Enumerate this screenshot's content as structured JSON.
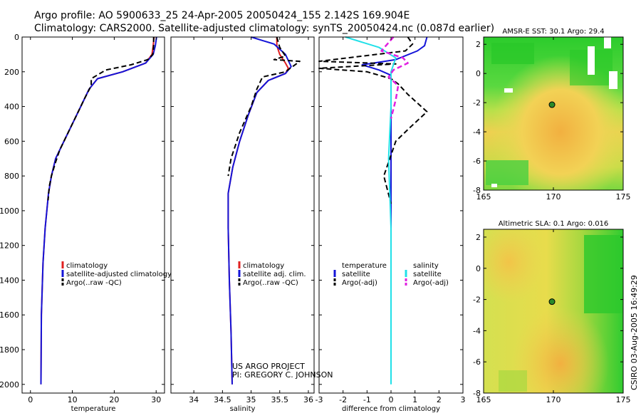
{
  "title": {
    "line1": "Argo profile: AO 5900633_25 24-Apr-2005 20050424_155 2.142S 169.904E",
    "line2": "Climatology: CARS2000. Satellite-adjusted climatology: synTS_20050424.nc (0.087d earlier)"
  },
  "colors": {
    "red": "#e02020",
    "blue": "#1414d8",
    "black": "#000000",
    "cyan": "#20e0e8",
    "magenta": "#e020e0"
  },
  "credit": {
    "line1": "US ARGO PROJECT",
    "line2": "PI: GREGORY C. JOHNSON"
  },
  "stamp": "CSIRO 03-Aug-2005 16:49:29",
  "chart_data": [
    {
      "type": "line",
      "id": "temperature",
      "xlabel": "temperature",
      "ylabel": "",
      "xlim": [
        -2,
        32
      ],
      "ylim": [
        2050,
        0
      ],
      "xticks": [
        0,
        10,
        20,
        30
      ],
      "yticks": [
        0,
        200,
        400,
        600,
        800,
        1000,
        1200,
        1400,
        1600,
        1800,
        2000
      ],
      "legend": [
        "climatology",
        "satellite-adjusted climatology",
        "Argo(..raw -QC)"
      ],
      "series": [
        {
          "name": "climatology",
          "color": "red",
          "dash": false,
          "x": [
            29.5,
            29.3,
            29.0,
            27.5,
            22.0,
            16.0,
            14.0,
            12.0,
            10.0,
            8.0,
            6.0,
            5.0,
            4.3,
            3.5,
            3.0,
            2.6,
            2.5
          ],
          "y": [
            0,
            50,
            100,
            150,
            200,
            240,
            300,
            400,
            500,
            600,
            700,
            800,
            900,
            1100,
            1300,
            1600,
            2000
          ]
        },
        {
          "name": "satellite-adjusted climatology",
          "color": "blue",
          "dash": false,
          "x": [
            30.1,
            29.8,
            29.3,
            27.5,
            22.0,
            16.0,
            14.0,
            12.0,
            10.0,
            8.0,
            6.0,
            5.0,
            4.3,
            3.5,
            3.0,
            2.6,
            2.5
          ],
          "y": [
            0,
            50,
            100,
            150,
            200,
            240,
            300,
            400,
            500,
            600,
            700,
            800,
            900,
            1100,
            1300,
            1600,
            2000
          ]
        },
        {
          "name": "Argo(..raw -QC)",
          "color": "black",
          "dash": true,
          "x": [
            29.4,
            29.4,
            29.2,
            28.0,
            24.0,
            18.0,
            14.5,
            14.5,
            13.0,
            11.0,
            9.0,
            7.0,
            6.0,
            5.0,
            4.5,
            4.2
          ],
          "y": [
            0,
            50,
            100,
            130,
            160,
            190,
            240,
            280,
            350,
            450,
            550,
            650,
            720,
            800,
            860,
            940
          ]
        }
      ]
    },
    {
      "type": "line",
      "id": "salinity",
      "xlabel": "salinity",
      "ylabel": "",
      "xlim": [
        33.6,
        36.1
      ],
      "ylim": [
        2050,
        0
      ],
      "xticks": [
        34,
        34.5,
        35,
        35.5,
        36
      ],
      "yticks": [
        0,
        200,
        400,
        600,
        800,
        1000,
        1200,
        1400,
        1600,
        1800,
        2000
      ],
      "legend": [
        "climatology",
        "satellite adj. clim.",
        "Argo(..raw -QC)"
      ],
      "series": [
        {
          "name": "climatology",
          "color": "red",
          "dash": false,
          "x": [
            35.45,
            35.45,
            35.5,
            35.6,
            35.65,
            35.6,
            35.3,
            35.1,
            34.95,
            34.8,
            34.68,
            34.6,
            34.6,
            34.62,
            34.65,
            34.67
          ],
          "y": [
            0,
            50,
            100,
            150,
            180,
            210,
            250,
            320,
            450,
            600,
            750,
            900,
            1100,
            1400,
            1700,
            2000
          ]
        },
        {
          "name": "satellite adj. clim.",
          "color": "blue",
          "dash": false,
          "x": [
            35.0,
            35.2,
            35.4,
            35.6,
            35.7,
            35.6,
            35.3,
            35.1,
            34.95,
            34.8,
            34.68,
            34.6,
            34.6,
            34.62,
            34.65,
            34.67
          ],
          "y": [
            0,
            20,
            40,
            100,
            170,
            210,
            250,
            320,
            450,
            600,
            750,
            900,
            1100,
            1400,
            1700,
            2000
          ]
        },
        {
          "name": "Argo(..raw -QC)",
          "color": "black",
          "dash": true,
          "x": [
            35.45,
            35.5,
            35.6,
            35.4,
            35.85,
            35.6,
            35.2,
            35.1,
            35.0,
            34.8,
            34.65,
            34.6
          ],
          "y": [
            0,
            60,
            110,
            130,
            140,
            200,
            230,
            300,
            400,
            550,
            700,
            800
          ]
        }
      ]
    },
    {
      "type": "line",
      "id": "difference",
      "xlabel": "difference from climatology",
      "ylabel": "",
      "xlim": [
        -3,
        3
      ],
      "ylim": [
        2050,
        0
      ],
      "xticks": [
        -3,
        -2,
        -1,
        0,
        1,
        2,
        3
      ],
      "yticks": [
        0,
        200,
        400,
        600,
        800,
        1000,
        1200,
        1400,
        1600,
        1800,
        2000
      ],
      "legend_left": [
        "temperature",
        "satellite",
        "Argo(-adj)"
      ],
      "legend_right": [
        "salinity",
        "satellite",
        "Argo(-adj)"
      ],
      "series": [
        {
          "name": "temperature satellite",
          "color": "blue",
          "dash": false,
          "x": [
            1.5,
            1.4,
            1.1,
            0.2,
            -1.2,
            -0.5,
            0.0,
            0.0,
            0.0,
            0.0,
            0.0
          ],
          "y": [
            0,
            50,
            80,
            130,
            160,
            190,
            220,
            400,
            800,
            1200,
            1900
          ]
        },
        {
          "name": "temperature Argo(-adj)",
          "color": "black",
          "dash": true,
          "x": [
            0.7,
            0.9,
            0.6,
            -3.0,
            0.2,
            -3.0,
            -1.0,
            0.0,
            0.3,
            0.7,
            1.5,
            0.8,
            0.2,
            -0.3,
            0.0
          ],
          "y": [
            0,
            40,
            80,
            140,
            155,
            180,
            200,
            240,
            270,
            330,
            430,
            520,
            600,
            800,
            960
          ]
        },
        {
          "name": "salinity satellite",
          "color": "cyan",
          "dash": false,
          "x": [
            -1.9,
            -0.5,
            0.2,
            0.0,
            0.0,
            -0.1,
            0.0,
            0.0,
            0.0
          ],
          "y": [
            0,
            60,
            120,
            200,
            400,
            700,
            1100,
            1500,
            2000
          ]
        },
        {
          "name": "salinity Argo(-adj)",
          "color": "magenta",
          "dash": true,
          "x": [
            0.1,
            -0.4,
            0.5,
            0.7,
            0.1,
            -0.1,
            0.3,
            0.2,
            0.0
          ],
          "y": [
            0,
            80,
            120,
            150,
            190,
            230,
            280,
            360,
            470
          ]
        }
      ]
    },
    {
      "type": "heatmap",
      "id": "sst",
      "title": "AMSR-E SST: 30.1 Argo: 29.4",
      "xlim": [
        165,
        175
      ],
      "ylim": [
        -8,
        2.5
      ],
      "xticks": [
        165,
        170,
        175
      ],
      "yticks": [
        2,
        0,
        -2,
        -4,
        -6,
        -8
      ],
      "marker": [
        169.9,
        -2.142
      ]
    },
    {
      "type": "heatmap",
      "id": "sla",
      "title": "Altimetric SLA: 0.1 Argo: 0.016",
      "xlim": [
        165,
        175
      ],
      "ylim": [
        -8,
        2.5
      ],
      "xticks": [
        165,
        170,
        175
      ],
      "yticks": [
        2,
        0,
        -2,
        -4,
        -6,
        -8
      ],
      "marker": [
        169.9,
        -2.142
      ]
    }
  ]
}
